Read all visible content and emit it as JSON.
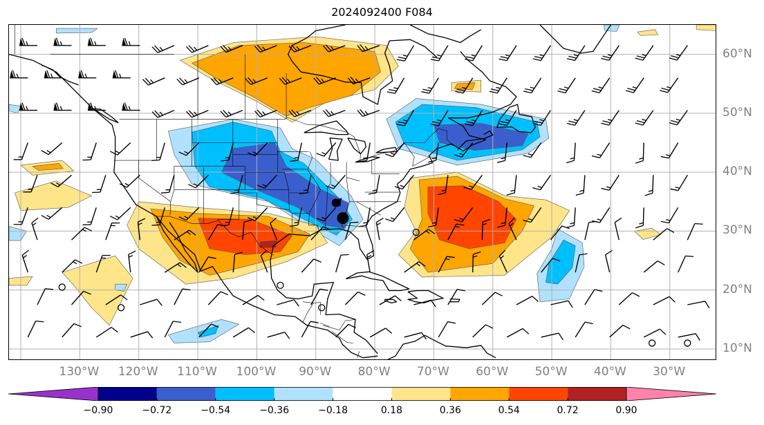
{
  "title": "2024092400 F084",
  "map": {
    "type": "weather-map",
    "field": "shaded anomaly with wind barbs",
    "extent": {
      "lon_min": -142,
      "lon_max": -22,
      "lat_min": 8,
      "lat_max": 65
    },
    "longitude_labels": [
      {
        "lon": -130,
        "text": "130°W"
      },
      {
        "lon": -120,
        "text": "120°W"
      },
      {
        "lon": -110,
        "text": "110°W"
      },
      {
        "lon": -100,
        "text": "100°W"
      },
      {
        "lon": -90,
        "text": "90°W"
      },
      {
        "lon": -80,
        "text": "80°W"
      },
      {
        "lon": -70,
        "text": "70°W"
      },
      {
        "lon": -60,
        "text": "60°W"
      },
      {
        "lon": -50,
        "text": "50°W"
      },
      {
        "lon": -40,
        "text": "40°W"
      },
      {
        "lon": -30,
        "text": "30°W"
      }
    ],
    "latitude_labels": [
      {
        "lat": 60,
        "text": "60°N"
      },
      {
        "lat": 50,
        "text": "50°N"
      },
      {
        "lat": 40,
        "text": "40°N"
      },
      {
        "lat": 30,
        "text": "30°N"
      },
      {
        "lat": 20,
        "text": "20°N"
      },
      {
        "lat": 10,
        "text": "10°N"
      }
    ],
    "colors": {
      "grid": "#b0b0b0",
      "coast": "#000000",
      "low_marker": "#000000"
    }
  },
  "colorbar": {
    "levels": [
      -0.9,
      -0.72,
      -0.54,
      -0.36,
      -0.18,
      0.18,
      0.36,
      0.54,
      0.72,
      0.9
    ],
    "tick_labels": [
      "−0.90",
      "−0.72",
      "−0.54",
      "−0.36",
      "−0.18",
      "0.18",
      "0.36",
      "0.54",
      "0.72",
      "0.90"
    ],
    "under_color": "#9932cc",
    "over_color": "#ff82ab",
    "bin_colors": [
      "#9932cc",
      "#00008b",
      "#3a5fcd",
      "#00bfff",
      "#b0e2ff",
      "#ffffff",
      "#ffe58a",
      "#ffa500",
      "#ff4500",
      "#b22222",
      "#ff82ab"
    ]
  }
}
